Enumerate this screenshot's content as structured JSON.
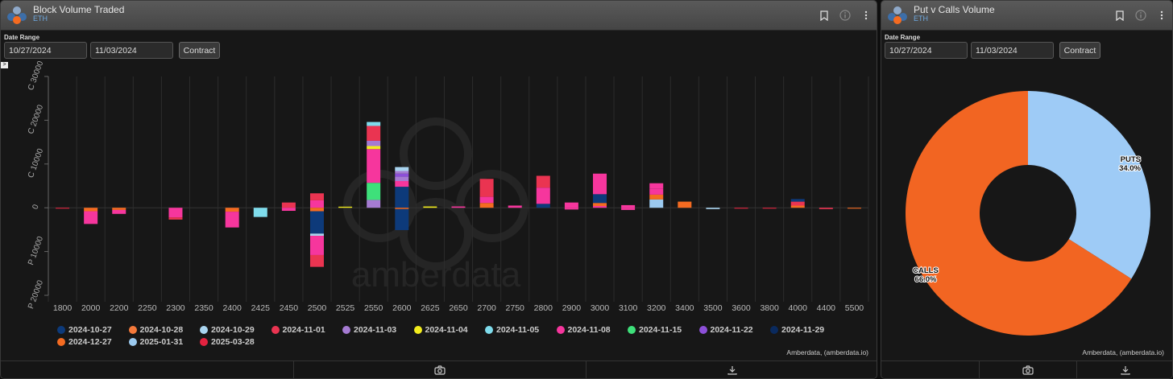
{
  "colors": {
    "2024-10-27": "#0d3a7a",
    "2024-10-28": "#f4793b",
    "2024-10-29": "#a9d4ef",
    "2024-11-01": "#ea3451",
    "2024-11-03": "#a57bd2",
    "2024-11-04": "#f2ec1d",
    "2024-11-05": "#7fdcec",
    "2024-11-08": "#f6369d",
    "2024-11-15": "#3ee07a",
    "2024-11-22": "#8c4fd8",
    "2024-11-29": "#0a2a5e",
    "2024-12-27": "#f46b21",
    "2025-01-31": "#9ccaf0",
    "2025-03-28": "#e3223f"
  },
  "bar_panel": {
    "title": "Block Volume Traded",
    "subtitle": "ETH",
    "date_range_label": "Date Range",
    "start_date": "10/27/2024",
    "end_date": "11/03/2024",
    "contract_label": "Contract",
    "credit": "Amberdata, (amberdata.io)",
    "watermark": "amberdata",
    "expand_glyph": ">",
    "icons": [
      "bookmark-icon",
      "info-icon",
      "more-vert-icon",
      "camera-icon",
      "download-icon"
    ]
  },
  "pie_panel": {
    "title": "Put v Calls Volume",
    "subtitle": "ETH",
    "date_range_label": "Date Range",
    "start_date": "10/27/2024",
    "end_date": "11/03/2024",
    "contract_label": "Contract",
    "credit": "Amberdata, (amberdata.io)",
    "icons": [
      "bookmark-icon",
      "info-icon",
      "more-vert-icon",
      "camera-icon",
      "download-icon"
    ]
  },
  "chart_data": [
    {
      "type": "bar",
      "title": "Block Volume Traded",
      "categories": [
        "1800",
        "2000",
        "2200",
        "2250",
        "2300",
        "2350",
        "2400",
        "2425",
        "2450",
        "2500",
        "2525",
        "2550",
        "2600",
        "2625",
        "2650",
        "2700",
        "2750",
        "2800",
        "2900",
        "3000",
        "3100",
        "3200",
        "3400",
        "3500",
        "3600",
        "3800",
        "4000",
        "4400",
        "5500"
      ],
      "ylim": [
        -20000,
        30000
      ],
      "yticks": [
        {
          "value": 30000,
          "label": "C 30000"
        },
        {
          "value": 20000,
          "label": "C 20000"
        },
        {
          "value": 10000,
          "label": "C 10000"
        },
        {
          "value": 0,
          "label": "0"
        },
        {
          "value": -10000,
          "label": "P 10000"
        },
        {
          "value": -20000,
          "label": "P 20000"
        }
      ],
      "legend": [
        "2024-10-27",
        "2024-10-28",
        "2024-10-29",
        "2024-11-01",
        "2024-11-03",
        "2024-11-04",
        "2024-11-05",
        "2024-11-08",
        "2024-11-15",
        "2024-11-22",
        "2024-11-29",
        "2024-12-27",
        "2025-01-31",
        "2025-03-28"
      ],
      "legend_position": "bottom",
      "stacks": [
        {
          "category": "1800",
          "calls": [],
          "puts": [
            {
              "expiry": "2025-03-28",
              "value": 200
            }
          ]
        },
        {
          "category": "2000",
          "calls": [],
          "puts": [
            {
              "expiry": "2024-12-27",
              "value": 800
            },
            {
              "expiry": "2024-11-08",
              "value": 2900
            }
          ]
        },
        {
          "category": "2200",
          "calls": [],
          "puts": [
            {
              "expiry": "2024-12-27",
              "value": 500
            },
            {
              "expiry": "2024-11-08",
              "value": 900
            }
          ]
        },
        {
          "category": "2250",
          "calls": [],
          "puts": []
        },
        {
          "category": "2300",
          "calls": [],
          "puts": [
            {
              "expiry": "2024-11-08",
              "value": 2200
            },
            {
              "expiry": "2024-11-01",
              "value": 500
            }
          ]
        },
        {
          "category": "2350",
          "calls": [],
          "puts": []
        },
        {
          "category": "2400",
          "calls": [],
          "puts": [
            {
              "expiry": "2024-12-27",
              "value": 900
            },
            {
              "expiry": "2024-11-08",
              "value": 3600
            }
          ]
        },
        {
          "category": "2425",
          "calls": [],
          "puts": [
            {
              "expiry": "2024-11-05",
              "value": 2100
            }
          ]
        },
        {
          "category": "2450",
          "calls": [
            {
              "expiry": "2024-11-01",
              "value": 1200
            }
          ],
          "puts": [
            {
              "expiry": "2024-11-08",
              "value": 700
            }
          ]
        },
        {
          "category": "2500",
          "calls": [
            {
              "expiry": "2024-11-08",
              "value": 1700
            },
            {
              "expiry": "2024-11-01",
              "value": 1600
            }
          ],
          "puts": [
            {
              "expiry": "2024-12-27",
              "value": 800
            },
            {
              "expiry": "2024-10-27",
              "value": 5100
            },
            {
              "expiry": "2024-10-29",
              "value": 500
            },
            {
              "expiry": "2024-11-08",
              "value": 4400
            },
            {
              "expiry": "2024-11-01",
              "value": 2700
            }
          ]
        },
        {
          "category": "2525",
          "calls": [
            {
              "expiry": "2024-11-04",
              "value": 250
            }
          ],
          "puts": []
        },
        {
          "category": "2550",
          "calls": [
            {
              "expiry": "2024-11-03",
              "value": 1800
            },
            {
              "expiry": "2024-11-15",
              "value": 3900
            },
            {
              "expiry": "2024-11-08",
              "value": 7700
            },
            {
              "expiry": "2024-11-04",
              "value": 700
            },
            {
              "expiry": "2024-11-03",
              "value": 1200
            },
            {
              "expiry": "2024-11-01",
              "value": 3400
            },
            {
              "expiry": "2024-11-05",
              "value": 900
            }
          ],
          "puts": []
        },
        {
          "category": "2600",
          "calls": [
            {
              "expiry": "2024-10-27",
              "value": 4800
            },
            {
              "expiry": "2024-11-08",
              "value": 1300
            },
            {
              "expiry": "2024-11-03",
              "value": 1000
            },
            {
              "expiry": "2024-11-22",
              "value": 700
            },
            {
              "expiry": "2024-11-03",
              "value": 600
            },
            {
              "expiry": "2024-10-29",
              "value": 900
            }
          ],
          "puts": [
            {
              "expiry": "2024-12-27",
              "value": 300
            },
            {
              "expiry": "2024-10-27",
              "value": 4800
            }
          ]
        },
        {
          "category": "2625",
          "calls": [
            {
              "expiry": "2024-11-04",
              "value": 300
            }
          ],
          "puts": []
        },
        {
          "category": "2650",
          "calls": [
            {
              "expiry": "2024-11-08",
              "value": 300
            }
          ],
          "puts": []
        },
        {
          "category": "2700",
          "calls": [
            {
              "expiry": "2024-12-27",
              "value": 1100
            },
            {
              "expiry": "2024-11-08",
              "value": 1400
            },
            {
              "expiry": "2024-11-01",
              "value": 4100
            }
          ],
          "puts": []
        },
        {
          "category": "2750",
          "calls": [
            {
              "expiry": "2024-11-08",
              "value": 500
            }
          ],
          "puts": []
        },
        {
          "category": "2800",
          "calls": [
            {
              "expiry": "2024-10-27",
              "value": 900
            },
            {
              "expiry": "2024-11-08",
              "value": 3700
            },
            {
              "expiry": "2024-11-01",
              "value": 2700
            }
          ],
          "puts": []
        },
        {
          "category": "2900",
          "calls": [
            {
              "expiry": "2024-11-08",
              "value": 1200
            }
          ],
          "puts": [
            {
              "expiry": "2024-11-08",
              "value": 400
            }
          ]
        },
        {
          "category": "3000",
          "calls": [
            {
              "expiry": "2024-11-08",
              "value": 400
            },
            {
              "expiry": "2024-12-27",
              "value": 700
            },
            {
              "expiry": "2024-10-27",
              "value": 2000
            },
            {
              "expiry": "2024-11-08",
              "value": 4700
            }
          ],
          "puts": []
        },
        {
          "category": "3100",
          "calls": [
            {
              "expiry": "2024-11-08",
              "value": 600
            }
          ],
          "puts": [
            {
              "expiry": "2024-11-08",
              "value": 500
            }
          ]
        },
        {
          "category": "3200",
          "calls": [
            {
              "expiry": "2025-01-31",
              "value": 1900
            },
            {
              "expiry": "2024-12-27",
              "value": 1100
            },
            {
              "expiry": "2024-11-08",
              "value": 1300
            },
            {
              "expiry": "2024-11-08",
              "value": 1300
            }
          ],
          "puts": []
        },
        {
          "category": "3400",
          "calls": [
            {
              "expiry": "2024-12-27",
              "value": 1400
            }
          ],
          "puts": []
        },
        {
          "category": "3500",
          "calls": [],
          "puts": [
            {
              "expiry": "2024-10-29",
              "value": 300
            }
          ]
        },
        {
          "category": "3600",
          "calls": [],
          "puts": [
            {
              "expiry": "2025-03-28",
              "value": 200
            }
          ]
        },
        {
          "category": "3800",
          "calls": [],
          "puts": [
            {
              "expiry": "2025-03-28",
              "value": 200
            }
          ]
        },
        {
          "category": "4000",
          "calls": [
            {
              "expiry": "2024-12-27",
              "value": 500
            },
            {
              "expiry": "2024-11-01",
              "value": 900
            },
            {
              "expiry": "2024-10-27",
              "value": 600
            }
          ],
          "puts": []
        },
        {
          "category": "4400",
          "calls": [],
          "puts": [
            {
              "expiry": "2024-11-01",
              "value": 300
            }
          ]
        },
        {
          "category": "5500",
          "calls": [],
          "puts": [
            {
              "expiry": "2024-12-27",
              "value": 200
            }
          ]
        }
      ]
    },
    {
      "type": "pie",
      "title": "Put v Calls Volume",
      "donut": true,
      "slices": [
        {
          "label": "PUTS",
          "value": 34.0,
          "display": "34.0%",
          "color": "#9ecbf6"
        },
        {
          "label": "CALLS",
          "value": 66.0,
          "display": "66.0%",
          "color": "#f26522"
        }
      ]
    }
  ]
}
